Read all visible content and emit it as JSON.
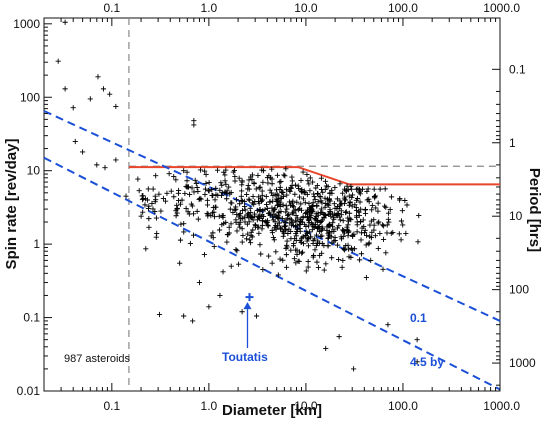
{
  "chart_data": {
    "type": "scatter",
    "xscale": "log",
    "yscale": "log",
    "xlim": [
      0.02,
      1000
    ],
    "ylim": [
      0.01,
      1200
    ],
    "xticks": [
      "0.1",
      "1.0",
      "10.0",
      "100.0",
      "1000.0"
    ],
    "xtick_values": [
      0.1,
      1,
      10,
      100,
      1000
    ],
    "yticks": [
      "0.01",
      "0.1",
      "1",
      "10",
      "100",
      "1000"
    ],
    "ytick_values": [
      0.01,
      0.1,
      1,
      10,
      100,
      1000
    ],
    "right_ticks": [
      "0.1",
      "1",
      "10",
      "100",
      "1000"
    ],
    "right_tick_values": [
      0.1,
      1,
      10,
      100,
      1000
    ],
    "xlabel": "Diameter [km]",
    "ylabel": "Spin rate [rev/day]",
    "ylabel_right": "Period [hrs]",
    "annotations": {
      "count": "987 asteroids",
      "toutatis": "Toutatis",
      "line1": "0.1",
      "line2": "4.5 by"
    },
    "reference_lines": {
      "vertical_x": 0.15,
      "horizontal_y": 11.5
    },
    "spin_barrier": [
      [
        0.15,
        11.2
      ],
      [
        8.3,
        11.2
      ],
      [
        28,
        6.5
      ],
      [
        1000,
        6.5
      ]
    ],
    "dashed_lines": [
      {
        "label": "0.1",
        "points": [
          [
            0.02,
            65
          ],
          [
            1000,
            0.09
          ]
        ]
      },
      {
        "label": "4.5 by",
        "points": [
          [
            0.02,
            15
          ],
          [
            1000,
            0.0105
          ]
        ]
      }
    ],
    "toutatis_point": [
      2.5,
      0.19
    ],
    "colors": {
      "barrier": "#e8452b",
      "dashed": "#1a4fd6",
      "points": "#000000",
      "ref": "#888888"
    },
    "points": [
      [
        0.033,
        1050
      ],
      [
        0.028,
        310
      ],
      [
        0.033,
        130
      ],
      [
        0.072,
        190
      ],
      [
        0.082,
        130
      ],
      [
        0.11,
        75
      ],
      [
        0.04,
        72
      ],
      [
        0.06,
        95
      ],
      [
        0.095,
        110
      ],
      [
        0.05,
        18
      ],
      [
        0.07,
        12
      ],
      [
        0.085,
        11
      ],
      [
        0.11,
        14
      ],
      [
        0.14,
        4.5
      ],
      [
        0.042,
        25
      ],
      [
        0.7,
        48
      ],
      [
        0.7,
        42
      ],
      [
        0.9,
        0.72
      ],
      [
        0.5,
        0.55
      ],
      [
        1.4,
        0.42
      ],
      [
        0.8,
        0.3
      ],
      [
        0.31,
        0.11
      ],
      [
        0.55,
        0.105
      ],
      [
        0.68,
        0.09
      ],
      [
        1.0,
        0.14
      ],
      [
        1.3,
        0.2
      ],
      [
        2.2,
        0.12
      ],
      [
        3.1,
        0.105
      ],
      [
        1.7,
        0.5
      ],
      [
        3.6,
        0.45
      ],
      [
        5.2,
        0.38
      ],
      [
        16,
        0.038
      ],
      [
        22,
        0.055
      ],
      [
        31,
        0.02
      ],
      [
        12,
        0.7
      ],
      [
        24,
        0.6
      ],
      [
        42,
        0.35
      ],
      [
        70,
        0.08
      ],
      [
        140,
        0.025
      ],
      [
        140,
        0.05
      ]
    ],
    "cloud": {
      "count": 860,
      "seed": 7
    }
  }
}
